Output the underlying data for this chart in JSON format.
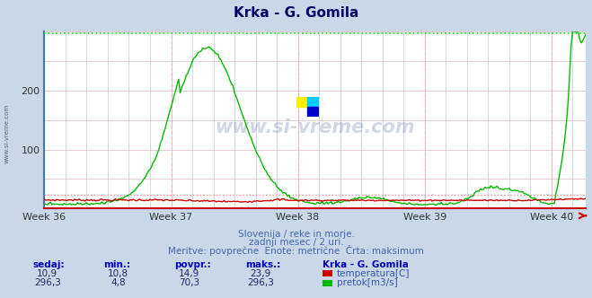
{
  "title": "Krka - G. Gomila",
  "bg_color": "#c8d8e8",
  "plot_bg_color": "#ffffff",
  "grid_color_h": "#ddbbbb",
  "grid_color_v": "#bbccdd",
  "x_labels": [
    "Week 36",
    "Week 37",
    "Week 38",
    "Week 39",
    "Week 40"
  ],
  "x_tick_indices": [
    0,
    84,
    168,
    252,
    336
  ],
  "total_points": 360,
  "ylim": [
    0,
    300
  ],
  "yticks": [
    100,
    200
  ],
  "temp_color": "#cc0000",
  "flow_color": "#00bb00",
  "temp_max_line_color": "#ff8888",
  "flow_max_line_color": "#00ee00",
  "vline_color": "#ffaaaa",
  "spine_left_color": "#4477aa",
  "spine_bottom_color": "#cc0000",
  "watermark_color": "#223388",
  "subtitle_color": "#4466aa",
  "footer_lines": [
    "Slovenija / reke in morje.",
    "zadnji mesec / 2 uri.",
    "Meritve: povprečne  Enote: metrične  Črta: maksimum"
  ],
  "table_headers": [
    "sedaj:",
    "min.:",
    "povpr.:",
    "maks.:"
  ],
  "table_row1": [
    "10,9",
    "10,8",
    "14,9",
    "23,9"
  ],
  "table_row2": [
    "296,3",
    "4,8",
    "70,3",
    "296,3"
  ],
  "legend_title": "Krka - G. Gomila",
  "legend_row1": "temperatura[C]",
  "legend_row2": "pretok[m3/s]",
  "temp_max_val": 23.9,
  "flow_max_val": 296.3,
  "logo_colors": [
    "#ffee00",
    "#00ccff",
    "#0000cc"
  ]
}
